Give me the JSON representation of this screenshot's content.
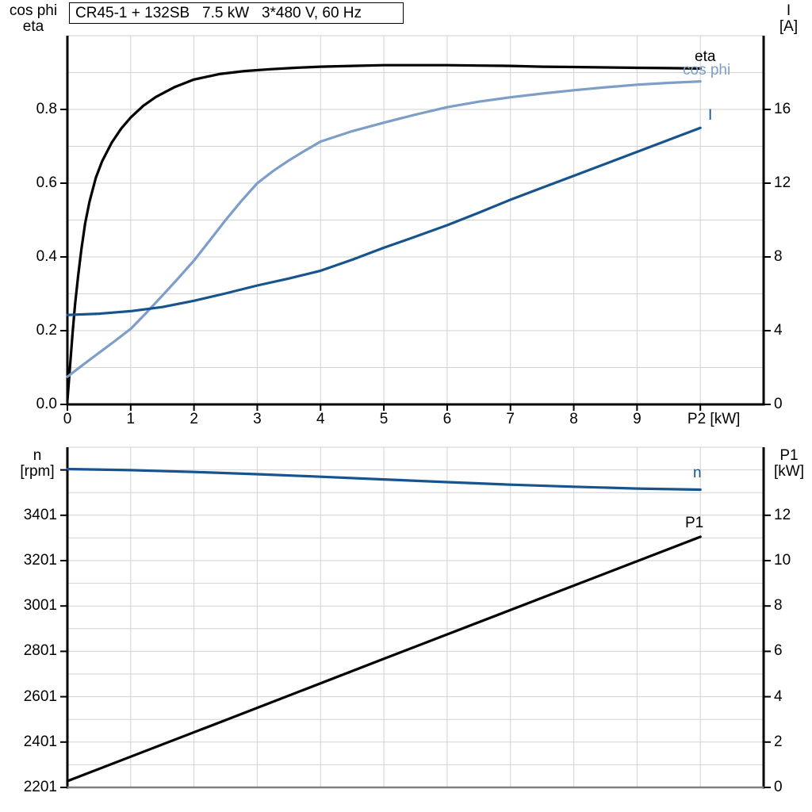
{
  "title_box": {
    "text": "CR45-1 + 132SB   7.5 kW   3*480 V, 60 Hz"
  },
  "colors": {
    "black": "#000000",
    "dark_blue": "#17548e",
    "light_blue": "#7d9ec7",
    "grid": "#d2d2d2",
    "axis": "#000000",
    "gray_border": "#808080",
    "background": "#ffffff"
  },
  "chart_data": [
    {
      "type": "line",
      "title": "CR45-1 + 132SB   7.5 kW   3*480 V, 60 Hz",
      "left_axis": {
        "header": [
          "cos phi",
          "eta"
        ],
        "range": [
          0,
          1.0
        ],
        "tick_values": [
          0.0,
          0.2,
          0.4,
          0.6,
          0.8
        ],
        "tick_labels": [
          "0.0",
          "0.2",
          "0.4",
          "0.6",
          "0.8"
        ],
        "minor_step": 0.1,
        "grid": true
      },
      "right_axis": {
        "header": [
          "I",
          "[A]"
        ],
        "range": [
          0,
          20
        ],
        "tick_values": [
          0,
          4,
          8,
          12,
          16
        ],
        "tick_labels": [
          "0",
          "4",
          "8",
          "12",
          "16"
        ]
      },
      "x_axis": {
        "label": "P2 [kW]",
        "range": [
          0,
          11
        ],
        "grid_step": 1,
        "tick_values": [
          0,
          1,
          2,
          3,
          4,
          5,
          6,
          7,
          8,
          9,
          10
        ],
        "tick_labels": [
          "0",
          "1",
          "2",
          "3",
          "4",
          "5",
          "6",
          "7",
          "8",
          "9",
          "P2 [kW]"
        ]
      },
      "series": [
        {
          "name": "eta",
          "axis": "left",
          "color": "#000000",
          "points": [
            [
              0,
              0.01
            ],
            [
              0.04,
              0.1
            ],
            [
              0.08,
              0.19
            ],
            [
              0.12,
              0.27
            ],
            [
              0.17,
              0.35
            ],
            [
              0.22,
              0.42
            ],
            [
              0.28,
              0.49
            ],
            [
              0.35,
              0.55
            ],
            [
              0.45,
              0.615
            ],
            [
              0.55,
              0.66
            ],
            [
              0.7,
              0.71
            ],
            [
              0.85,
              0.748
            ],
            [
              1.0,
              0.778
            ],
            [
              1.2,
              0.81
            ],
            [
              1.4,
              0.834
            ],
            [
              1.7,
              0.861
            ],
            [
              2.0,
              0.881
            ],
            [
              2.4,
              0.896
            ],
            [
              2.8,
              0.904
            ],
            [
              3.2,
              0.909
            ],
            [
              3.6,
              0.913
            ],
            [
              4.0,
              0.916
            ],
            [
              4.5,
              0.918
            ],
            [
              5.0,
              0.92
            ],
            [
              5.5,
              0.92
            ],
            [
              6.0,
              0.92
            ],
            [
              6.5,
              0.919
            ],
            [
              7.0,
              0.918
            ],
            [
              7.5,
              0.916
            ],
            [
              8.0,
              0.915
            ],
            [
              8.5,
              0.914
            ],
            [
              9.0,
              0.913
            ],
            [
              9.5,
              0.912
            ],
            [
              10.0,
              0.911
            ]
          ]
        },
        {
          "name": "cos phi",
          "axis": "left",
          "color": "#7d9ec7",
          "points": [
            [
              0,
              0.075
            ],
            [
              0.25,
              0.108
            ],
            [
              0.5,
              0.14
            ],
            [
              0.75,
              0.172
            ],
            [
              1.0,
              0.205
            ],
            [
              1.25,
              0.249
            ],
            [
              1.5,
              0.295
            ],
            [
              1.75,
              0.342
            ],
            [
              2.0,
              0.39
            ],
            [
              2.25,
              0.445
            ],
            [
              2.5,
              0.5
            ],
            [
              2.75,
              0.552
            ],
            [
              3.0,
              0.6
            ],
            [
              3.25,
              0.633
            ],
            [
              3.5,
              0.662
            ],
            [
              3.75,
              0.688
            ],
            [
              4.0,
              0.713
            ],
            [
              4.5,
              0.741
            ],
            [
              5.0,
              0.764
            ],
            [
              5.5,
              0.786
            ],
            [
              6.0,
              0.806
            ],
            [
              6.5,
              0.821
            ],
            [
              7.0,
              0.833
            ],
            [
              7.5,
              0.843
            ],
            [
              8.0,
              0.852
            ],
            [
              8.5,
              0.86
            ],
            [
              9.0,
              0.867
            ],
            [
              9.5,
              0.872
            ],
            [
              10.0,
              0.876
            ]
          ]
        },
        {
          "name": "I",
          "axis": "right",
          "color": "#17548e",
          "points": [
            [
              0,
              4.85
            ],
            [
              0.5,
              4.92
            ],
            [
              1.0,
              5.06
            ],
            [
              1.5,
              5.28
            ],
            [
              2.0,
              5.62
            ],
            [
              2.5,
              6.02
            ],
            [
              3.0,
              6.45
            ],
            [
              3.5,
              6.83
            ],
            [
              4.0,
              7.25
            ],
            [
              4.5,
              7.85
            ],
            [
              5.0,
              8.5
            ],
            [
              5.5,
              9.1
            ],
            [
              6.0,
              9.72
            ],
            [
              6.5,
              10.4
            ],
            [
              7.0,
              11.1
            ],
            [
              7.5,
              11.75
            ],
            [
              8.0,
              12.4
            ],
            [
              8.5,
              13.05
            ],
            [
              9.0,
              13.7
            ],
            [
              9.5,
              14.35
            ],
            [
              10.0,
              15.0
            ]
          ]
        }
      ]
    },
    {
      "type": "line",
      "left_axis": {
        "header": [
          "n",
          "[rpm]"
        ],
        "range": [
          2201,
          3701
        ],
        "tick_values": [
          2201,
          2401,
          2601,
          2801,
          3001,
          3201,
          3401
        ],
        "tick_labels": [
          "2201",
          "2401",
          "2601",
          "2801",
          "3001",
          "3201",
          "3401"
        ],
        "extra_ticks": [
          3601
        ],
        "minor_step": 100,
        "grid": true
      },
      "right_axis": {
        "header": [
          "P1",
          "[kW]"
        ],
        "range": [
          0,
          15
        ],
        "tick_values": [
          0,
          2,
          4,
          6,
          8,
          10,
          12
        ],
        "tick_labels": [
          "0",
          "2",
          "4",
          "6",
          "8",
          "10",
          "12"
        ]
      },
      "x_axis": {
        "label": "",
        "range": [
          0,
          11
        ],
        "grid_step": 1,
        "tick_values": [],
        "tick_labels": []
      },
      "series": [
        {
          "name": "n",
          "axis": "left",
          "color": "#17548e",
          "points": [
            [
              0,
              3605
            ],
            [
              1,
              3600
            ],
            [
              2,
              3592
            ],
            [
              3,
              3582
            ],
            [
              4,
              3571
            ],
            [
              5,
              3559
            ],
            [
              6,
              3547
            ],
            [
              7,
              3536
            ],
            [
              8,
              3527
            ],
            [
              9,
              3519
            ],
            [
              10,
              3514
            ]
          ]
        },
        {
          "name": "P1",
          "axis": "right",
          "color": "#000000",
          "points": [
            [
              0,
              0.28
            ],
            [
              2.5,
              2.97
            ],
            [
              5,
              5.67
            ],
            [
              7.5,
              8.36
            ],
            [
              10,
              11.05
            ]
          ]
        }
      ]
    }
  ]
}
